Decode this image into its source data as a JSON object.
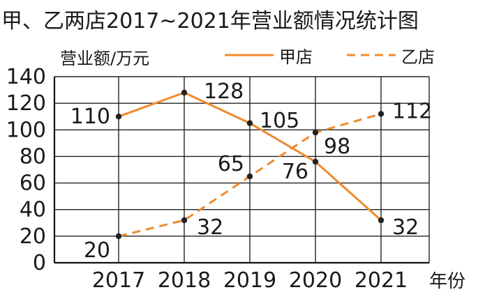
{
  "chart_data": {
    "type": "line",
    "title": "甲、乙两店2017~2021年营业额情况统计图",
    "ylabel": "营业额/万元",
    "xlabel": "年份",
    "categories": [
      "2017",
      "2018",
      "2019",
      "2020",
      "2021"
    ],
    "ylim": [
      0,
      140
    ],
    "yticks": [
      0,
      20,
      40,
      60,
      80,
      100,
      120,
      140
    ],
    "grid": true,
    "legend_position": "top-right",
    "series": [
      {
        "name": "甲店",
        "style": "solid",
        "color": "#ef8a2e",
        "values": [
          110,
          128,
          105,
          76,
          32
        ]
      },
      {
        "name": "乙店",
        "style": "dashed",
        "color": "#ef8a2e",
        "values": [
          20,
          32,
          65,
          98,
          112
        ]
      }
    ]
  }
}
